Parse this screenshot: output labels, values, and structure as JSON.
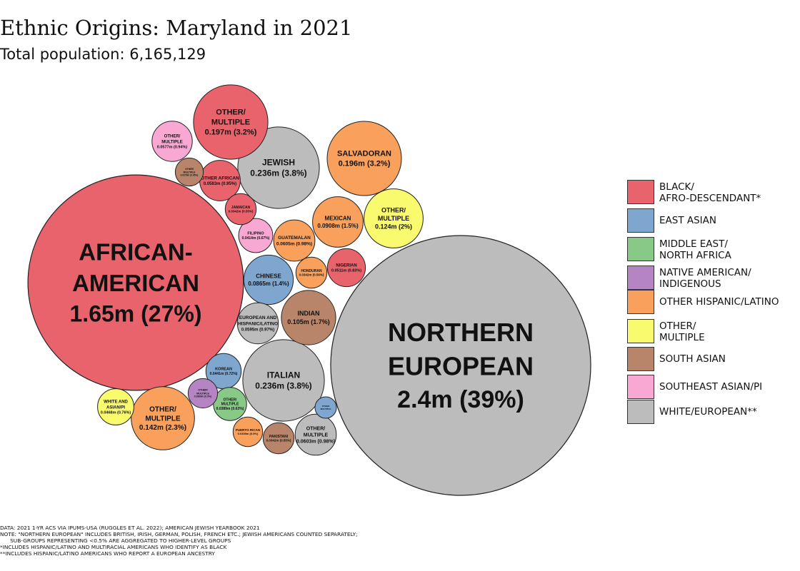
{
  "header": {
    "title": "Ethnic Origins: Maryland in 2021",
    "subtitle": "Total population: 6,165,129"
  },
  "chart_data": {
    "type": "bubble",
    "title": "Ethnic Origins: Maryland in 2021",
    "subtitle": "Total population: 6,165,129",
    "total_population": 6165129,
    "legend_position": "right",
    "categories": [
      {
        "key": "black",
        "label": "BLACK/\nAFRO-DESCENDANT*",
        "color": "#e8636c"
      },
      {
        "key": "east_asian",
        "label": "EAST ASIAN",
        "color": "#7ea6cf"
      },
      {
        "key": "mena",
        "label": "MIDDLE EAST/\nNORTH AFRICA",
        "color": "#88c987"
      },
      {
        "key": "native",
        "label": "NATIVE AMERICAN/\nINDIGENOUS",
        "color": "#b485c2"
      },
      {
        "key": "hispanic",
        "label": "OTHER HISPANIC/LATINO",
        "color": "#f8a05c"
      },
      {
        "key": "other",
        "label": "OTHER/\nMULTIPLE",
        "color": "#fafa6e"
      },
      {
        "key": "south_asian",
        "label": "SOUTH ASIAN",
        "color": "#b9856a"
      },
      {
        "key": "se_asian",
        "label": "SOUTHEAST ASIAN/PI",
        "color": "#f9a8d3"
      },
      {
        "key": "white",
        "label": "WHITE/EUROPEAN**",
        "color": "#bcbcbc"
      }
    ],
    "bubbles": [
      {
        "group": "NORTHERN EUROPEAN",
        "value_m": 2.4,
        "pct": 39,
        "category": "white",
        "text": [
          "NORTHERN",
          "EUROPEAN",
          "2.4m (39%)"
        ]
      },
      {
        "group": "AFRICAN-AMERICAN",
        "value_m": 1.65,
        "pct": 27,
        "category": "black",
        "text": [
          "AFRICAN-",
          "AMERICAN",
          "1.65m (27%)"
        ]
      },
      {
        "group": "JEWISH",
        "value_m": 0.236,
        "pct": 3.8,
        "category": "white",
        "text": [
          "JEWISH",
          "0.236m (3.8%)"
        ]
      },
      {
        "group": "ITALIAN",
        "value_m": 0.236,
        "pct": 3.8,
        "category": "white",
        "text": [
          "ITALIAN",
          "0.236m (3.8%)"
        ]
      },
      {
        "group": "OTHER/MULTIPLE",
        "value_m": 0.197,
        "pct": 3.2,
        "category": "black",
        "text": [
          "OTHER/",
          "MULTIPLE",
          "0.197m (3.2%)"
        ]
      },
      {
        "group": "SALVADORAN",
        "value_m": 0.196,
        "pct": 3.2,
        "category": "hispanic",
        "text": [
          "SALVADORAN",
          "0.196m (3.2%)"
        ]
      },
      {
        "group": "OTHER/MULTIPLE",
        "value_m": 0.142,
        "pct": 2.3,
        "category": "hispanic",
        "text": [
          "OTHER/",
          "MULTIPLE",
          "0.142m (2.3%)"
        ]
      },
      {
        "group": "OTHER/MULTIPLE",
        "value_m": 0.124,
        "pct": 2,
        "category": "other",
        "text": [
          "OTHER/",
          "MULTIPLE",
          "0.124m (2%)"
        ]
      },
      {
        "group": "INDIAN",
        "value_m": 0.105,
        "pct": 1.7,
        "category": "south_asian",
        "text": [
          "INDIAN",
          "0.105m (1.7%)"
        ]
      },
      {
        "group": "MEXICAN",
        "value_m": 0.0908,
        "pct": 1.5,
        "category": "hispanic",
        "text": [
          "MEXICAN",
          "0.0908m (1.5%)"
        ]
      },
      {
        "group": "CHINESE",
        "value_m": 0.0865,
        "pct": 1.4,
        "category": "east_asian",
        "text": [
          "CHINESE",
          "0.0865m (1.4%)"
        ]
      },
      {
        "group": "GUATEMALAN",
        "value_m": 0.0605,
        "pct": 0.98,
        "category": "hispanic",
        "text": [
          "GUATEMALAN",
          "0.0605m (0.98%)"
        ]
      },
      {
        "group": "OTHER/MULTIPLE",
        "value_m": 0.0603,
        "pct": 0.98,
        "category": "white",
        "text": [
          "OTHER/",
          "MULTIPLE",
          "0.0603m (0.98%)"
        ]
      },
      {
        "group": "EUROPEAN AND HISPANIC/LATINO",
        "value_m": 0.0595,
        "pct": 0.97,
        "category": "white",
        "text": [
          "EUROPEAN AND",
          "HISPANIC/LATINO",
          "0.0595m (0.97%)"
        ]
      },
      {
        "group": "OTHER AFRICAN",
        "value_m": 0.0583,
        "pct": 0.95,
        "category": "black",
        "text": [
          "OTHER AFRICAN",
          "0.0583m (0.95%)"
        ]
      },
      {
        "group": "OTHER/MULTIPLE",
        "value_m": 0.0577,
        "pct": 0.94,
        "category": "se_asian",
        "text": [
          "OTHER/",
          "MULTIPLE",
          "0.0577m (0.94%)"
        ]
      },
      {
        "group": "NIGERIAN",
        "value_m": 0.0511,
        "pct": 0.83,
        "category": "black",
        "text": [
          "NIGERIAN",
          "0.0511m (0.83%)"
        ]
      },
      {
        "group": "WHITE AND ASIAN/PI",
        "value_m": 0.0468,
        "pct": 0.76,
        "category": "other",
        "text": [
          "WHITE AND",
          "ASIAN/PI",
          "0.0468m (0.76%)"
        ]
      },
      {
        "group": "KOREAN",
        "value_m": 0.0441,
        "pct": 0.72,
        "category": "east_asian",
        "text": [
          "KOREAN",
          "0.0441m (0.72%)"
        ]
      },
      {
        "group": "FILIPINO",
        "value_m": 0.0414,
        "pct": 0.67,
        "category": "se_asian",
        "text": [
          "FILIPINO",
          "0.0414m (0.67%)"
        ]
      },
      {
        "group": "OTHER/MULTIPLE",
        "value_m": 0.0389,
        "pct": 0.63,
        "category": "mena",
        "text": [
          "OTHER/",
          "MULTIPLE",
          "0.0389m (0.63%)"
        ]
      },
      {
        "group": "HONDURAN",
        "value_m": 0.0342,
        "pct": 0.56,
        "category": "hispanic",
        "text": [
          "HONDURAN",
          "0.0342m (0.56%)"
        ]
      },
      {
        "group": "JAMAICAN",
        "value_m": 0.0342,
        "pct": 0.55,
        "category": "black",
        "text": [
          "JAMAICAN",
          "0.0342m (0.55%)"
        ]
      },
      {
        "group": "PAKISTANI",
        "value_m": 0.0342,
        "pct": 0.55,
        "category": "south_asian",
        "text": [
          "PAKISTANI",
          "0.0342m (0.55%)"
        ]
      },
      {
        "group": "PUERTO RICAN",
        "value_m": 0.0309,
        "pct": 0.5,
        "category": "hispanic",
        "text": [
          "PUERTO RICAN",
          "0.0309m (0.5%)"
        ]
      },
      {
        "group": "OTHER/MULTIPLE",
        "value_m": 0.0308,
        "pct": 0.5,
        "category": "native",
        "text": [
          "OTHER/",
          "MULTIPLE",
          "0.0308m (0.5%)"
        ]
      },
      {
        "group": "OTHER/MULTIPLE",
        "value_m": 0.0279,
        "pct": 0.45,
        "category": "south_asian",
        "text": [
          "OTHER",
          "MULTIPLE",
          "0.0279m (0.45%)"
        ]
      },
      {
        "group": "OTHER/MULTIPLE",
        "value_m": 0.0163,
        "pct": 0.26,
        "category": "east_asian",
        "text": [
          "OTHER",
          "MULTIPLE"
        ]
      }
    ],
    "notes": [
      "DATA: 2021 1-YR ACS VIA IPUMS-USA (RUGGLES ET AL. 2022); AMERICAN JEWISH YEARBOOK 2021",
      "NOTE: \"NORTHERN EUROPEAN\" INCLUDES BRITISH, IRISH, GERMAN, POLISH, FRENCH ETC.; JEWISH AMERICANS COUNTED SEPARATELY;",
      "      SUB-GROUPS REPRESENTING <0.5% ARE AGGREGATED TO HIGHER-LEVEL GROUPS",
      "*INCLUDES HISPANIC/LATINO AND MULTIRACIAL AMERICANS WHO IDENTIFY AS BLACK",
      "**INCLUDES HISPANIC/LATINO AMERICANS WHO REPORT A EUROPEAN ANCESTRY"
    ]
  }
}
